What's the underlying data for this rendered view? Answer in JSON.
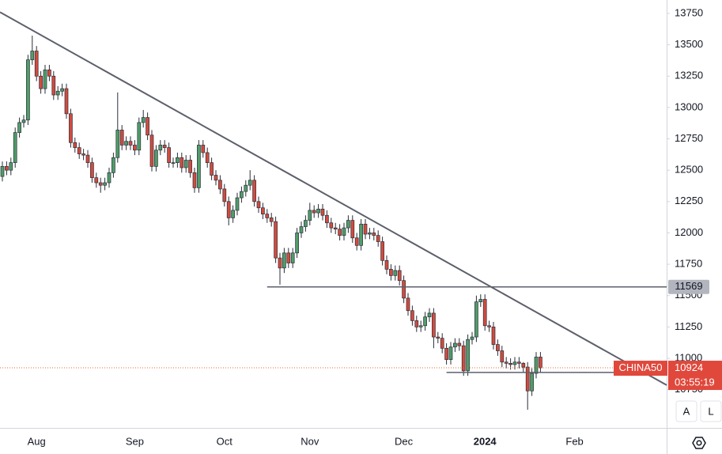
{
  "chart_data": {
    "type": "candlestick",
    "symbol": "CHINA50",
    "price_label": 10924,
    "countdown": "03:55:19",
    "categories": [
      null,
      null,
      null,
      null,
      null,
      null,
      null,
      null,
      "Aug",
      null,
      null,
      null,
      null,
      null,
      null,
      null,
      null,
      null,
      null,
      null,
      null,
      null,
      null,
      null,
      null,
      null,
      null,
      null,
      null,
      null,
      null,
      "Sep",
      null,
      null,
      null,
      null,
      null,
      null,
      null,
      null,
      null,
      null,
      null,
      null,
      null,
      null,
      null,
      null,
      null,
      null,
      null,
      null,
      "Oct",
      null,
      null,
      null,
      null,
      null,
      null,
      null,
      null,
      null,
      null,
      null,
      null,
      null,
      null,
      null,
      null,
      null,
      null,
      null,
      "Nov",
      null,
      null,
      null,
      null,
      null,
      null,
      null,
      null,
      null,
      null,
      null,
      null,
      null,
      null,
      null,
      null,
      null,
      null,
      null,
      null,
      null,
      "Dec",
      null,
      null,
      null,
      null,
      null,
      null,
      null,
      null,
      null,
      null,
      null,
      null,
      null,
      null,
      null,
      null,
      null,
      null,
      "2024",
      null,
      null,
      null,
      null,
      null,
      null,
      null,
      null,
      null,
      null,
      null,
      null,
      null,
      null,
      null,
      null,
      null,
      null,
      null,
      null,
      "Feb"
    ],
    "open": [
      12450,
      12530,
      12500,
      12560,
      12800,
      12880,
      12900,
      13380,
      13450,
      13250,
      13150,
      13300,
      13250,
      13100,
      13130,
      13150,
      12950,
      12720,
      12680,
      12630,
      12620,
      12560,
      12440,
      12400,
      12380,
      12400,
      12480,
      12600,
      12820,
      12700,
      12730,
      12700,
      12660,
      12880,
      12920,
      12780,
      12530,
      12660,
      12700,
      12680,
      12560,
      12560,
      12600,
      12520,
      12580,
      12480,
      12360,
      12700,
      12640,
      12560,
      12460,
      12420,
      12350,
      12250,
      12120,
      12180,
      12280,
      12330,
      12380,
      12420,
      12250,
      12200,
      12150,
      12120,
      12090,
      11800,
      11720,
      11840,
      11760,
      11840,
      12000,
      12050,
      12100,
      12180,
      12160,
      12190,
      12140,
      12080,
      12040,
      12030,
      11980,
      12040,
      12100,
      11960,
      11900,
      12070,
      11990,
      12000,
      11980,
      11930,
      11780,
      11710,
      11660,
      11700,
      11620,
      11480,
      11380,
      11300,
      11250,
      11260,
      11330,
      11360,
      11170,
      11160,
      11080,
      10990,
      11090,
      11120,
      11100,
      10900,
      11150,
      11170,
      11450,
      11470,
      11260,
      11250,
      11110,
      11060,
      10970,
      10960,
      10950,
      10970,
      10960,
      10930,
      10740,
      10880,
      11010,
      null,
      null,
      null,
      null,
      null,
      null,
      null,
      null
    ],
    "high": [
      12570,
      12570,
      12600,
      12840,
      12920,
      12940,
      13420,
      13573,
      13490,
      13290,
      13340,
      13340,
      13290,
      13170,
      13190,
      13190,
      12990,
      12760,
      12720,
      12670,
      12660,
      12600,
      12480,
      12440,
      12440,
      12520,
      12640,
      13120,
      12860,
      12770,
      12770,
      12740,
      12920,
      12980,
      12960,
      12820,
      12700,
      12740,
      12740,
      12720,
      12600,
      12640,
      12640,
      12620,
      12620,
      12520,
      12740,
      12740,
      12680,
      12600,
      12500,
      12460,
      12390,
      12290,
      12220,
      12320,
      12370,
      12420,
      12500,
      12460,
      12290,
      12240,
      12190,
      12160,
      12130,
      11840,
      11880,
      11880,
      11880,
      12040,
      12090,
      12140,
      12240,
      12220,
      12230,
      12230,
      12180,
      12120,
      12080,
      12070,
      12080,
      12140,
      12140,
      12000,
      12110,
      12110,
      12040,
      12040,
      12020,
      11970,
      11820,
      11750,
      11740,
      11740,
      11660,
      11520,
      11420,
      11340,
      11300,
      11370,
      11400,
      11400,
      11210,
      11200,
      11120,
      11130,
      11160,
      11160,
      11140,
      11190,
      11210,
      11500,
      11510,
      11510,
      11300,
      11290,
      11150,
      11100,
      11010,
      11000,
      11010,
      11010,
      10970,
      10970,
      10920,
      11050,
      11050,
      null,
      null,
      null,
      null,
      null,
      null,
      null,
      null
    ],
    "low": [
      12410,
      12460,
      12460,
      12520,
      12760,
      12840,
      12860,
      13340,
      13210,
      13110,
      13110,
      13210,
      13060,
      13060,
      13090,
      12910,
      12680,
      12640,
      12590,
      12580,
      12520,
      12400,
      12360,
      12320,
      12340,
      12360,
      12440,
      12560,
      12660,
      12660,
      12660,
      12620,
      12620,
      12840,
      12740,
      12490,
      12490,
      12620,
      12640,
      12520,
      12520,
      12520,
      12480,
      12480,
      12440,
      12320,
      12320,
      12600,
      12520,
      12420,
      12380,
      12310,
      12210,
      12060,
      12080,
      12140,
      12240,
      12290,
      12340,
      12210,
      12160,
      12110,
      12080,
      12050,
      11760,
      11587,
      11680,
      11720,
      11720,
      11800,
      11960,
      12010,
      12060,
      12120,
      12120,
      12100,
      12040,
      12000,
      11990,
      11940,
      11940,
      12000,
      11920,
      11860,
      11860,
      11950,
      11950,
      11940,
      11890,
      11740,
      11670,
      11620,
      11620,
      11580,
      11440,
      11340,
      11260,
      11210,
      11210,
      11220,
      11290,
      11080,
      11120,
      11040,
      10950,
      10950,
      11050,
      11060,
      10860,
      10860,
      11110,
      11130,
      11410,
      11220,
      11210,
      11070,
      11020,
      10930,
      10920,
      10910,
      10910,
      10920,
      10890,
      10590,
      10700,
      10840,
      10884,
      null,
      null,
      null,
      null,
      null,
      null,
      null,
      null
    ],
    "close": [
      12530,
      12500,
      12560,
      12800,
      12880,
      12900,
      13380,
      13450,
      13250,
      13150,
      13300,
      13250,
      13100,
      13130,
      13150,
      12950,
      12720,
      12680,
      12630,
      12620,
      12560,
      12440,
      12400,
      12380,
      12400,
      12480,
      12600,
      12820,
      12700,
      12730,
      12700,
      12660,
      12880,
      12920,
      12780,
      12530,
      12660,
      12700,
      12680,
      12560,
      12560,
      12600,
      12520,
      12580,
      12480,
      12360,
      12700,
      12640,
      12560,
      12460,
      12420,
      12350,
      12250,
      12120,
      12180,
      12280,
      12330,
      12380,
      12420,
      12250,
      12200,
      12150,
      12120,
      12090,
      11800,
      11720,
      11840,
      11760,
      11840,
      12000,
      12050,
      12100,
      12180,
      12160,
      12190,
      12140,
      12080,
      12040,
      12030,
      11980,
      12040,
      12100,
      11960,
      11900,
      12070,
      11990,
      12000,
      11980,
      11930,
      11780,
      11710,
      11660,
      11700,
      11620,
      11480,
      11380,
      11300,
      11250,
      11260,
      11330,
      11360,
      11170,
      11160,
      11080,
      10990,
      11090,
      11120,
      11100,
      10900,
      11150,
      11170,
      11450,
      11470,
      11260,
      11250,
      11110,
      11060,
      10970,
      10960,
      10950,
      10970,
      10960,
      10930,
      10740,
      10880,
      11010,
      10924,
      null,
      null,
      null,
      null,
      null,
      null,
      null,
      null
    ],
    "up_color": "#4f9d69",
    "down_color": "#d24b3e",
    "ylim": [
      10445,
      13857
    ],
    "yticks": [
      13750,
      13500,
      13250,
      13000,
      12750,
      12500,
      12250,
      12000,
      11750,
      11500,
      11250,
      11000,
      10750
    ],
    "grid": false,
    "trendline": {
      "start": 13760,
      "end": 10786
    },
    "support_lines": [
      {
        "value": 11569,
        "start": 62
      },
      {
        "value": 10887,
        "start": 104
      }
    ],
    "buttons": [
      "A",
      "L"
    ]
  }
}
